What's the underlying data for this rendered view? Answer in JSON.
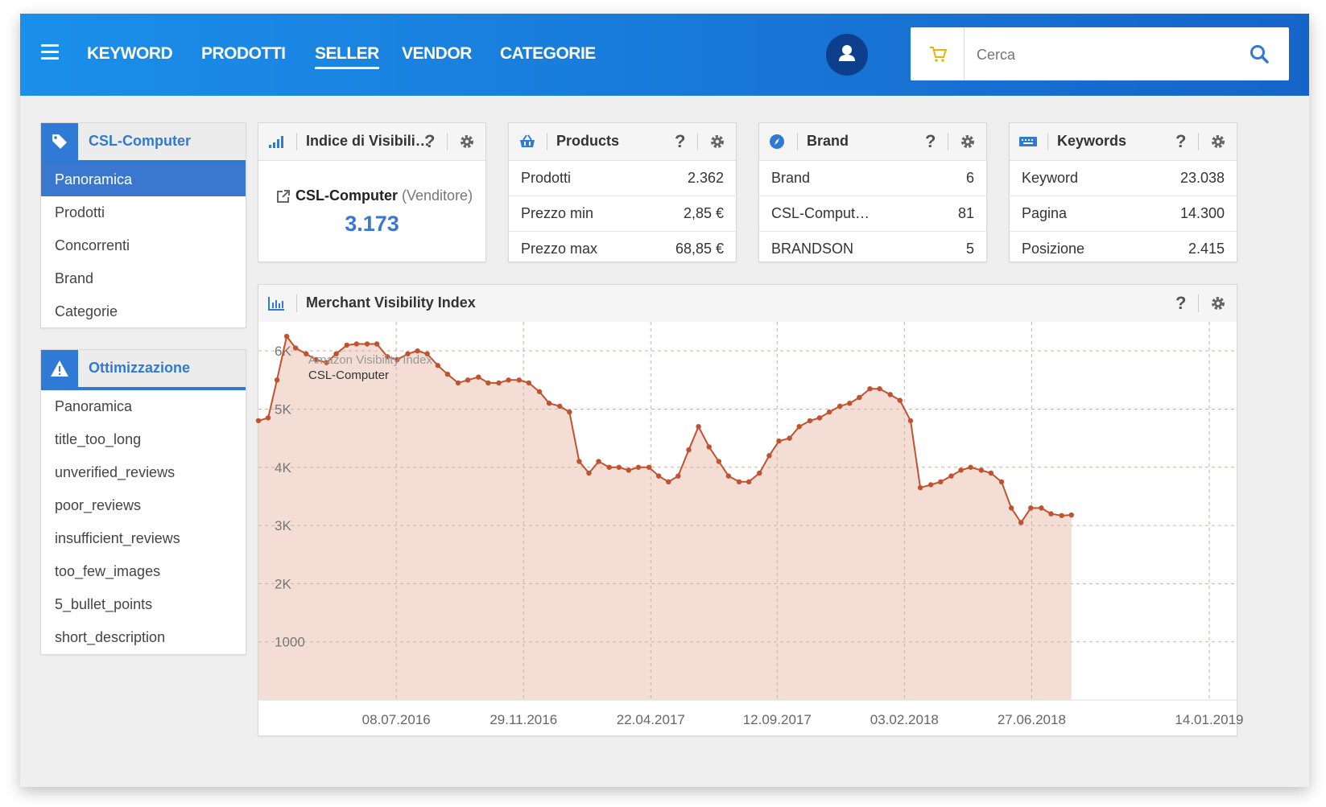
{
  "nav": {
    "items": [
      "KEYWORD",
      "PRODOTTI",
      "SELLER",
      "VENDOR",
      "CATEGORIE"
    ],
    "active": "SELLER"
  },
  "search": {
    "placeholder": "Cerca"
  },
  "sidebar": {
    "seller": {
      "title": "CSL-Computer",
      "items": [
        "Panoramica",
        "Prodotti",
        "Concorrenti",
        "Brand",
        "Categorie"
      ],
      "active": "Panoramica"
    },
    "optimization": {
      "title": "Ottimizzazione",
      "items": [
        "Panoramica",
        "title_too_long",
        "unverified_reviews",
        "poor_reviews",
        "insufficient_reviews",
        "too_few_images",
        "5_bullet_points",
        "short_description"
      ]
    }
  },
  "visibility_card": {
    "title": "Indice di Visibili…",
    "name": "CSL-Computer",
    "role": "(Venditore)",
    "value": "3.173"
  },
  "products_card": {
    "title": "Products",
    "rows": [
      {
        "label": "Prodotti",
        "value": "2.362"
      },
      {
        "label": "Prezzo min",
        "value": "2,85 €"
      },
      {
        "label": "Prezzo max",
        "value": "68,85 €"
      }
    ]
  },
  "brand_card": {
    "title": "Brand",
    "rows": [
      {
        "label": "Brand",
        "value": "6"
      },
      {
        "label": "CSL-Comput…",
        "value": "81"
      },
      {
        "label": "BRANDSON",
        "value": "5"
      }
    ]
  },
  "keywords_card": {
    "title": "Keywords",
    "rows": [
      {
        "label": "Keyword",
        "value": "23.038"
      },
      {
        "label": "Pagina",
        "value": "14.300"
      },
      {
        "label": "Posizione",
        "value": "2.415"
      }
    ]
  },
  "chart_panel": {
    "title": "Merchant Visibility Index"
  },
  "help_symbol": "?",
  "colors": {
    "accent": "#2f7ad4",
    "line": "#c0532f",
    "fill": "#f3ddd5",
    "header_start": "#1b8fea",
    "header_end": "#1565c8"
  },
  "icons": [
    "menu-icon",
    "user-icon",
    "cart-icon",
    "search-icon",
    "tag-icon",
    "warning-icon",
    "signal-icon",
    "basket-icon",
    "compass-icon",
    "keyboard-icon",
    "bar-chart-icon",
    "gear-icon",
    "external-link-icon"
  ],
  "chart_data": {
    "type": "area",
    "title": "",
    "legend": {
      "line1": "Amazon Visibility Index",
      "line2": "CSL-Computer",
      "placement": "top-left"
    },
    "ylim": [
      0,
      6500
    ],
    "yticks": [
      {
        "v": 1000,
        "label": "1000"
      },
      {
        "v": 2000,
        "label": "2K"
      },
      {
        "v": 3000,
        "label": "3K"
      },
      {
        "v": 4000,
        "label": "4K"
      },
      {
        "v": 5000,
        "label": "5K"
      },
      {
        "v": 6000,
        "label": "6K"
      }
    ],
    "xlim": [
      "2016-02-03",
      "2019-02-14"
    ],
    "xticks": [
      {
        "date": "2016-07-08",
        "label": "08.07.2016"
      },
      {
        "date": "2016-11-29",
        "label": "29.11.2016"
      },
      {
        "date": "2017-04-22",
        "label": "22.04.2017"
      },
      {
        "date": "2017-09-12",
        "label": "12.09.2017"
      },
      {
        "date": "2018-02-03",
        "label": "03.02.2018"
      },
      {
        "date": "2018-06-27",
        "label": "27.06.2018"
      },
      {
        "date": "2019-01-14",
        "label": "14.01.2019"
      }
    ],
    "series": [
      {
        "name": "CSL-Computer",
        "points": [
          [
            "2016-02-03",
            4800
          ],
          [
            "2016-02-14",
            4850
          ],
          [
            "2016-02-24",
            5500
          ],
          [
            "2016-03-06",
            6250
          ],
          [
            "2016-03-16",
            6050
          ],
          [
            "2016-03-28",
            5950
          ],
          [
            "2016-04-08",
            5850
          ],
          [
            "2016-04-20",
            5800
          ],
          [
            "2016-05-01",
            5950
          ],
          [
            "2016-05-13",
            6100
          ],
          [
            "2016-05-24",
            6120
          ],
          [
            "2016-06-05",
            6120
          ],
          [
            "2016-06-16",
            6120
          ],
          [
            "2016-06-28",
            5900
          ],
          [
            "2016-07-09",
            5850
          ],
          [
            "2016-07-21",
            5950
          ],
          [
            "2016-08-01",
            6000
          ],
          [
            "2016-08-12",
            5950
          ],
          [
            "2016-08-24",
            5750
          ],
          [
            "2016-09-04",
            5600
          ],
          [
            "2016-09-16",
            5450
          ],
          [
            "2016-09-27",
            5500
          ],
          [
            "2016-10-09",
            5550
          ],
          [
            "2016-10-20",
            5450
          ],
          [
            "2016-11-01",
            5450
          ],
          [
            "2016-11-12",
            5500
          ],
          [
            "2016-11-24",
            5500
          ],
          [
            "2016-12-05",
            5450
          ],
          [
            "2016-12-17",
            5300
          ],
          [
            "2016-12-28",
            5100
          ],
          [
            "2017-01-09",
            5050
          ],
          [
            "2017-01-20",
            4950
          ],
          [
            "2017-01-31",
            4100
          ],
          [
            "2017-02-11",
            3900
          ],
          [
            "2017-02-22",
            4100
          ],
          [
            "2017-03-06",
            4000
          ],
          [
            "2017-03-17",
            4000
          ],
          [
            "2017-03-28",
            3950
          ],
          [
            "2017-04-08",
            4000
          ],
          [
            "2017-04-20",
            4000
          ],
          [
            "2017-05-01",
            3850
          ],
          [
            "2017-05-12",
            3750
          ],
          [
            "2017-05-23",
            3850
          ],
          [
            "2017-06-04",
            4300
          ],
          [
            "2017-06-15",
            4700
          ],
          [
            "2017-06-27",
            4350
          ],
          [
            "2017-07-08",
            4100
          ],
          [
            "2017-07-19",
            3850
          ],
          [
            "2017-07-31",
            3750
          ],
          [
            "2017-08-11",
            3750
          ],
          [
            "2017-08-23",
            3900
          ],
          [
            "2017-09-03",
            4200
          ],
          [
            "2017-09-14",
            4450
          ],
          [
            "2017-09-26",
            4500
          ],
          [
            "2017-10-07",
            4700
          ],
          [
            "2017-10-19",
            4800
          ],
          [
            "2017-10-30",
            4850
          ],
          [
            "2017-11-10",
            4950
          ],
          [
            "2017-11-22",
            5050
          ],
          [
            "2017-12-03",
            5100
          ],
          [
            "2017-12-14",
            5200
          ],
          [
            "2017-12-26",
            5350
          ],
          [
            "2018-01-06",
            5350
          ],
          [
            "2018-01-18",
            5250
          ],
          [
            "2018-01-29",
            5150
          ],
          [
            "2018-02-10",
            4800
          ],
          [
            "2018-02-21",
            3650
          ],
          [
            "2018-03-05",
            3700
          ],
          [
            "2018-03-16",
            3750
          ],
          [
            "2018-03-28",
            3850
          ],
          [
            "2018-04-08",
            3950
          ],
          [
            "2018-04-19",
            4000
          ],
          [
            "2018-05-01",
            3950
          ],
          [
            "2018-05-12",
            3900
          ],
          [
            "2018-05-24",
            3750
          ],
          [
            "2018-06-04",
            3300
          ],
          [
            "2018-06-15",
            3050
          ],
          [
            "2018-06-26",
            3300
          ],
          [
            "2018-07-08",
            3300
          ],
          [
            "2018-07-19",
            3200
          ],
          [
            "2018-07-31",
            3170
          ],
          [
            "2018-08-11",
            3180
          ]
        ]
      }
    ]
  }
}
